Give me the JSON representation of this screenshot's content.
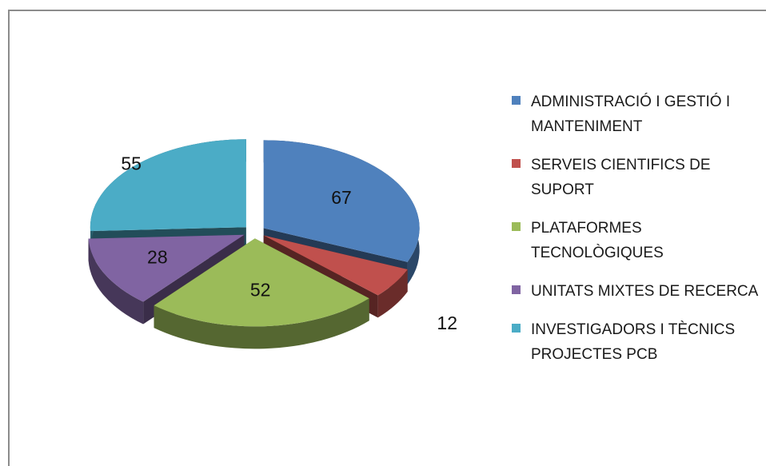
{
  "chart_data": {
    "type": "pie",
    "categories": [
      "ADMINISTRACIÓ I GESTIÓ I MANTENIMENT",
      "SERVEIS CIENTIFICS DE SUPORT",
      "PLATAFORMES TECNOLÒGIQUES",
      "UNITATS MIXTES DE RECERCA",
      "INVESTIGADORS I TÈCNICS PROJECTES PCB"
    ],
    "values": [
      67,
      12,
      52,
      28,
      55
    ],
    "colors": [
      "#4f81bd",
      "#c0504d",
      "#9bbb59",
      "#8064a2",
      "#4bacc6"
    ],
    "legend": "right"
  }
}
